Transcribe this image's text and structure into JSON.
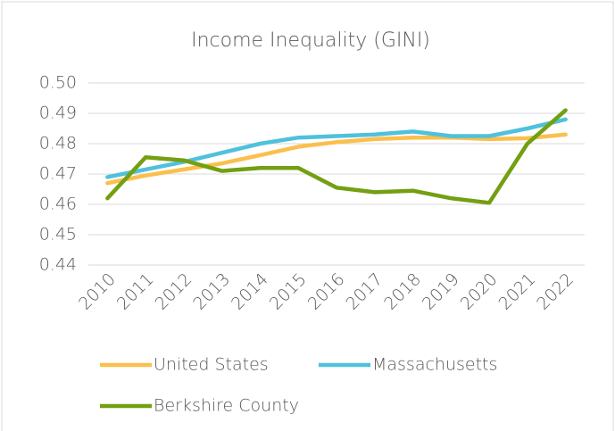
{
  "chart_data": {
    "type": "line",
    "title": "Income Inequality (GINI)",
    "categories": [
      "2010",
      "2011",
      "2012",
      "2013",
      "2014",
      "2015",
      "2016",
      "2017",
      "2018",
      "2019",
      "2020",
      "2021",
      "2022"
    ],
    "series": [
      {
        "name": "United States",
        "color": "#fbbf4c",
        "values": [
          0.467,
          0.4695,
          0.4715,
          0.4735,
          0.4762,
          0.479,
          0.4805,
          0.4815,
          0.482,
          0.482,
          0.4815,
          0.4818,
          0.483
        ]
      },
      {
        "name": "Massachusetts",
        "color": "#4fc1dc",
        "values": [
          0.469,
          0.4715,
          0.474,
          0.477,
          0.48,
          0.482,
          0.4825,
          0.483,
          0.484,
          0.4825,
          0.4825,
          0.485,
          0.488
        ]
      },
      {
        "name": "Berkshire County",
        "color": "#739f12",
        "values": [
          0.462,
          0.4755,
          0.4745,
          0.471,
          0.472,
          0.472,
          0.4655,
          0.464,
          0.4645,
          0.462,
          0.4605,
          0.48,
          0.491
        ]
      }
    ],
    "ylim": [
      0.44,
      0.5
    ],
    "yticks": [
      0.44,
      0.45,
      0.46,
      0.47,
      0.48,
      0.49,
      {
        "value": 0.5,
        "label": "0.50"
      }
    ],
    "grid": true
  }
}
